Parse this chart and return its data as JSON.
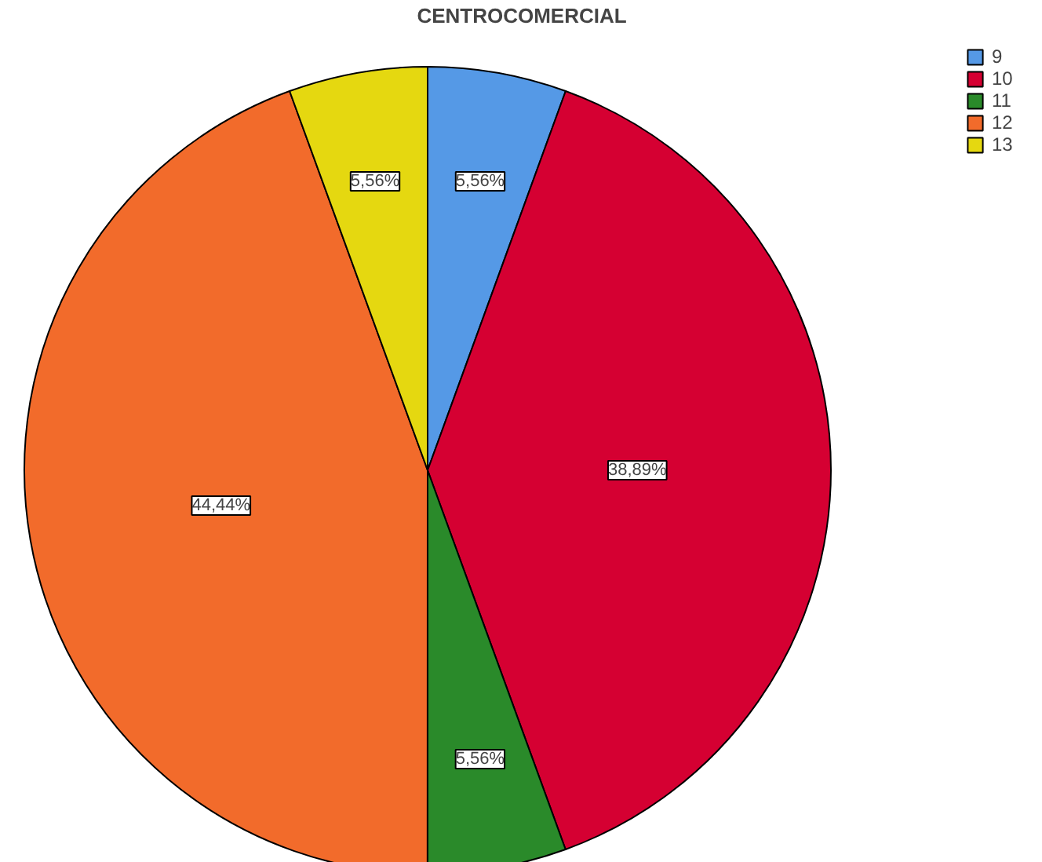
{
  "chart_data": {
    "type": "pie",
    "title": "CENTROCOMERCIAL",
    "categories": [
      "9",
      "10",
      "11",
      "12",
      "13"
    ],
    "values": [
      5.56,
      38.89,
      5.56,
      44.44,
      5.56
    ],
    "colors": [
      "#5599e6",
      "#d50032",
      "#2a8a2a",
      "#f26b2b",
      "#e5d810"
    ],
    "value_labels": [
      "5,56%",
      "38,89%",
      "5,56%",
      "44,44%",
      "5,56%"
    ],
    "legend": "top right"
  }
}
